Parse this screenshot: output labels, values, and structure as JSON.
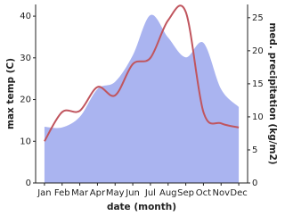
{
  "chart_data": {
    "type": "line",
    "x_label": "date (month)",
    "y_label": "max temp (C)",
    "y2_label": "med. precipitation (kg/m2)",
    "categories": [
      "Jan",
      "Feb",
      "Mar",
      "Apr",
      "May",
      "Jun",
      "Jul",
      "Aug",
      "Sep",
      "Oct",
      "Nov",
      "Dec"
    ],
    "series": [
      {
        "name": "med. precipitation",
        "type": "area",
        "axis": "y2",
        "color": "#aab4f0",
        "values": [
          8.5,
          8.4,
          10,
          14.2,
          15.3,
          19.3,
          25.4,
          22,
          19,
          21.2,
          14.2,
          11.5
        ]
      },
      {
        "name": "max temp",
        "type": "line",
        "axis": "y",
        "color": "#c0555e",
        "values": [
          10,
          17,
          17.3,
          23,
          21,
          28.5,
          30,
          39,
          41,
          17,
          14.3,
          13.3
        ]
      }
    ],
    "ylim": [
      0,
      42.8
    ],
    "yticks": [
      0,
      10,
      20,
      30,
      40
    ],
    "y2lim": [
      0,
      27
    ],
    "y2ticks": [
      0,
      5,
      10,
      15,
      20,
      25
    ]
  }
}
